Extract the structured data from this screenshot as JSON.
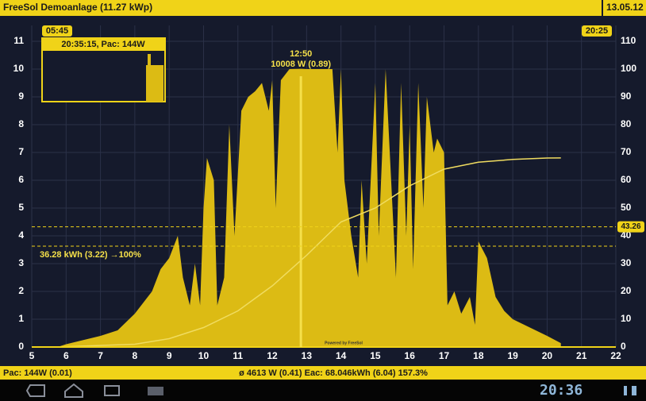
{
  "header": {
    "title": "FreeSol Demoanlage (11.27 kWp)",
    "date": "13.05.12"
  },
  "chart_data": {
    "type": "area",
    "xlim": [
      5,
      22
    ],
    "xticks": [
      5,
      6,
      7,
      8,
      9,
      10,
      11,
      12,
      13,
      14,
      15,
      16,
      17,
      18,
      19,
      20,
      21,
      22
    ],
    "ylim": [
      0,
      11
    ],
    "yticks": [
      0,
      1,
      2,
      3,
      4,
      5,
      6,
      7,
      8,
      9,
      10,
      11
    ],
    "y2lim": [
      0,
      110
    ],
    "y2ticks": [
      0,
      10,
      20,
      30,
      40,
      50,
      60,
      70,
      80,
      90,
      100,
      110
    ],
    "grid": true,
    "series": [
      {
        "color": "#dcbb14",
        "x": [
          5.75,
          6,
          6.5,
          7,
          7.5,
          8,
          8.5,
          8.75,
          9,
          9.25,
          9.4,
          9.6,
          9.75,
          9.9,
          10,
          10.1,
          10.3,
          10.4,
          10.6,
          10.75,
          10.9,
          11.1,
          11.3,
          11.5,
          11.7,
          11.9,
          12,
          12.1,
          12.25,
          12.5,
          12.85,
          13,
          13.5,
          13.75,
          13.9,
          14,
          14.1,
          14.3,
          14.5,
          14.6,
          14.75,
          15,
          15.1,
          15.3,
          15.5,
          15.6,
          15.75,
          15.9,
          16,
          16.1,
          16.25,
          16.4,
          16.5,
          16.7,
          16.8,
          17,
          17.1,
          17.3,
          17.5,
          17.75,
          17.9,
          18,
          18.25,
          18.5,
          18.75,
          19,
          19.5,
          20,
          20.4
        ],
        "values": [
          0,
          0.1,
          0.25,
          0.4,
          0.6,
          1.2,
          2,
          2.8,
          3.2,
          4,
          2.5,
          1.5,
          3,
          1.5,
          5,
          6.8,
          6,
          1.5,
          2.5,
          8,
          4,
          8.5,
          9,
          9.2,
          9.5,
          8.5,
          9.6,
          5,
          9.6,
          10,
          10.01,
          10,
          10,
          10,
          7,
          10,
          6,
          4,
          2.5,
          6,
          3,
          9.5,
          4,
          10,
          5,
          2.5,
          9.5,
          4,
          8,
          2.8,
          9.5,
          5,
          9,
          7,
          7.5,
          7,
          1.5,
          2,
          1.2,
          1.8,
          0.8,
          3.8,
          3.2,
          1.8,
          1.3,
          1,
          0.7,
          0.4,
          0.14
        ]
      },
      {
        "color": "#f0dc60",
        "axis": "y2",
        "x": [
          5.75,
          8,
          9,
          10,
          11,
          12,
          13,
          14,
          15,
          16,
          17,
          18,
          19,
          20,
          20.4
        ],
        "values": [
          0,
          1,
          3,
          7,
          13,
          22,
          33,
          45,
          50,
          58,
          64,
          66.5,
          67.5,
          68,
          68.05
        ]
      }
    ],
    "annotations": {
      "start": "05:45",
      "end": "20:25",
      "peak_time": "12:50",
      "peak_value": "10008 W (0.89)",
      "energy": "36.28 kWh (3.22) →100%",
      "marker": "43.26",
      "inset": "20:35:15, Pac: 144W",
      "watermark": "Powered by FreeSol"
    }
  },
  "footer": {
    "left": "Pac: 144W (0.01)",
    "center": "ø 4613 W (0.41) Eac: 68.046kWh (6.04) 157.3%"
  },
  "nav": {
    "time": "20:36"
  }
}
